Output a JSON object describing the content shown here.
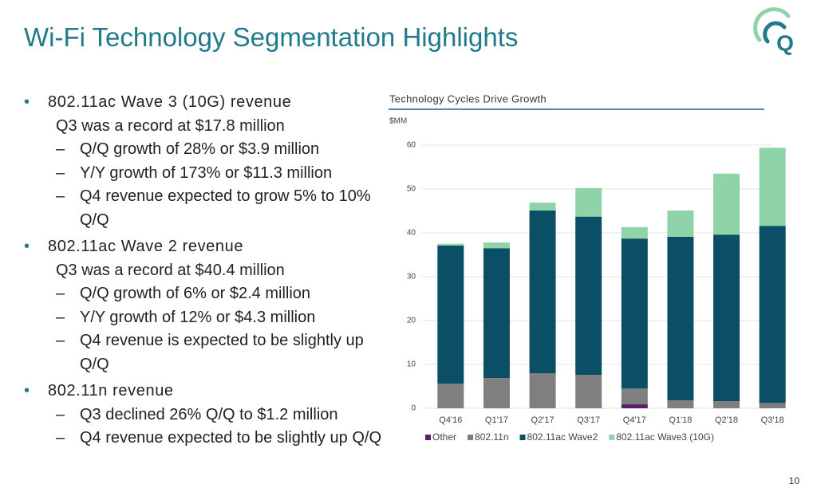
{
  "header": {
    "title": "Wi-Fi Technology Segmentation Highlights",
    "logo": "Q"
  },
  "bullets": [
    {
      "heading": "802.11ac Wave 3 (10G) revenue",
      "summary": "Q3 was a record at $17.8 million",
      "points": [
        "Q/Q growth of 28% or $3.9 million",
        "Y/Y growth of 173% or $11.3 million",
        "Q4 revenue expected to grow 5% to 10% Q/Q"
      ]
    },
    {
      "heading": "802.11ac Wave 2 revenue",
      "summary": "Q3 was a record at $40.4 million",
      "points": [
        "Q/Q growth of 6% or $2.4 million",
        "Y/Y growth of 12% or $4.3 million",
        "Q4 revenue is expected to be slightly up Q/Q"
      ]
    },
    {
      "heading": "802.11n revenue",
      "points": [
        "Q3 declined 26% Q/Q to $1.2 million",
        "Q4 revenue expected to be slightly up Q/Q"
      ]
    }
  ],
  "page_number": "10",
  "chart_data": {
    "type": "stacked-bar",
    "title": "Technology Cycles Drive Growth",
    "y_label": "$MM",
    "categories": [
      "Q4'16",
      "Q1'17",
      "Q2'17",
      "Q3'17",
      "Q4'17",
      "Q1'18",
      "Q2'18",
      "Q3'18"
    ],
    "series": [
      {
        "name": "Other",
        "color": "#5c1f6b",
        "values": [
          0,
          0,
          0,
          0,
          0.9,
          0,
          0,
          0
        ]
      },
      {
        "name": "802.11n",
        "color": "#7f7f7f",
        "values": [
          5.6,
          6.9,
          8.0,
          7.6,
          3.6,
          1.8,
          1.6,
          1.2
        ]
      },
      {
        "name": "802.11ac Wave2",
        "color": "#0b4f66",
        "values": [
          31.5,
          29.6,
          37.1,
          36.1,
          34.2,
          37.3,
          38.0,
          40.4
        ]
      },
      {
        "name": "802.11ac Wave3 (10G)",
        "color": "#8fd4a8",
        "values": [
          0.4,
          1.3,
          1.8,
          6.5,
          2.6,
          6.0,
          13.9,
          17.8
        ]
      }
    ],
    "ylim": [
      0,
      60
    ],
    "yticks": [
      0,
      10,
      20,
      30,
      40,
      50,
      60
    ],
    "grid": true,
    "legend": "bottom"
  }
}
